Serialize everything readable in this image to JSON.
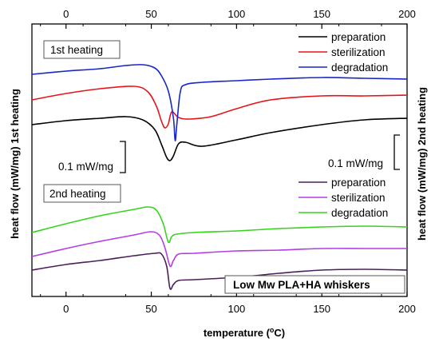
{
  "chart_data": {
    "type": "line",
    "xlabel": "temperature (°C)",
    "xlabel_prefix": "temperature (",
    "xlabel_degree": "o",
    "xlabel_suffix": "C)",
    "ylabel_left": "heat flow (mW/mg) 1st heating",
    "ylabel_right": "heat flow (mW/mg) 2nd heating",
    "xlim": [
      -20,
      200
    ],
    "xticks": [
      0,
      50,
      100,
      150,
      200
    ],
    "grid": false,
    "annotations": {
      "first_heating": "1st heating",
      "second_heating": "2nd heating",
      "scale_left": "0.1 mW/mg",
      "scale_right": "0.1 mW/mg",
      "sample": "Low Mw PLA+HA whiskers"
    },
    "colors": {
      "preparation_1st": "#000000",
      "sterilization_1st": "#e8141b",
      "degradation_1st": "#1826c8",
      "preparation_2nd": "#4a1f5a",
      "sterilization_2nd": "#b43de6",
      "degradation_2nd": "#36d41c"
    },
    "panels": [
      {
        "name": "1st heating",
        "legend_position": "top-right",
        "series": [
          {
            "name": "preparation",
            "color": "#000000",
            "x": [
              -20,
              0,
              20,
              35,
              45,
              52,
              56,
              59,
              61,
              63,
              66,
              70,
              80,
              100,
              120,
              150,
              175,
              200
            ],
            "y": [
              156,
              151,
              148,
              146,
              150,
              162,
              181,
              197,
              201,
              195,
              180,
              178,
              183,
              175,
              166,
              156,
              150,
              148
            ]
          },
          {
            "name": "sterilization",
            "color": "#e8141b",
            "x": [
              -20,
              0,
              20,
              40,
              48,
              53,
              56,
              58,
              60,
              62,
              66,
              72,
              85,
              100,
              120,
              150,
              175,
              200
            ],
            "y": [
              125,
              117,
              111,
              108,
              115,
              133,
              152,
              160,
              155,
              140,
              147,
              149,
              146,
              136,
              125,
              120,
              120,
              119
            ]
          },
          {
            "name": "degradation",
            "color": "#1826c8",
            "x": [
              -20,
              0,
              20,
              35,
              45,
              52,
              56,
              60,
              63,
              64,
              65,
              67,
              70,
              80,
              100,
              120,
              150,
              175,
              200
            ],
            "y": [
              93,
              89,
              86,
              82,
              81,
              85,
              95,
              114,
              148,
              176,
              155,
              115,
              106,
              103,
              101,
              99,
              97,
              98,
              99
            ]
          }
        ]
      },
      {
        "name": "2nd heating",
        "legend_position": "center-right",
        "series": [
          {
            "name": "preparation",
            "color": "#4a1f5a",
            "x": [
              -20,
              0,
              20,
              40,
              52,
              56,
              59,
              61,
              63,
              66,
              75,
              100,
              125,
              150,
              175,
              200
            ],
            "y": [
              338,
              331,
              326,
              320,
              317,
              318,
              333,
              361,
              356,
              351,
              350,
              347,
              342,
              338,
              337,
              338
            ]
          },
          {
            "name": "sterilization",
            "color": "#b43de6",
            "x": [
              -20,
              0,
              20,
              40,
              50,
              55,
              58,
              61,
              63,
              66,
              75,
              100,
              125,
              150,
              175,
              200
            ],
            "y": [
              321,
              311,
              302,
              294,
              290,
              295,
              310,
              333,
              326,
              318,
              317,
              314,
              313,
              311,
              311,
              311
            ]
          },
          {
            "name": "degradation",
            "color": "#36d41c",
            "x": [
              -20,
              0,
              20,
              40,
              48,
              53,
              57,
              60,
              62,
              65,
              75,
              100,
              125,
              150,
              175,
              200
            ],
            "y": [
              291,
              280,
              270,
              262,
              259,
              263,
              280,
              303,
              296,
              293,
              291,
              289,
              286,
              284,
              283,
              284
            ]
          }
        ]
      }
    ]
  }
}
